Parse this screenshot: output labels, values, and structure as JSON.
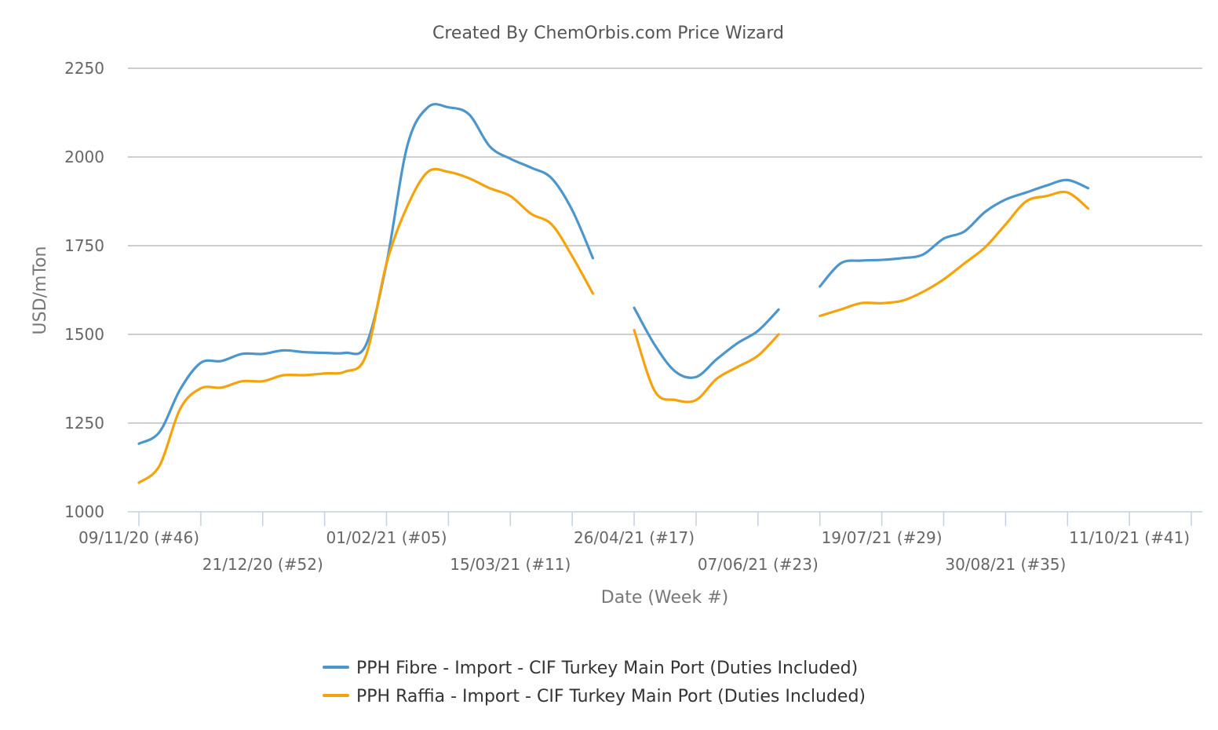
{
  "chart_data": {
    "type": "line",
    "title": "Created By ChemOrbis.com Price Wizard",
    "xlabel": "Date (Week #)",
    "ylabel": "USD/mTon",
    "ylim": [
      1000,
      2250
    ],
    "yticks": [
      1000,
      1250,
      1500,
      1750,
      2000,
      2250
    ],
    "grid": true,
    "legend_position": "bottom",
    "x": [
      "09/11/20 (#46)",
      "16/11/20 (#47)",
      "23/11/20 (#48)",
      "30/11/20 (#49)",
      "07/12/20 (#50)",
      "14/12/20 (#51)",
      "21/12/20 (#52)",
      "28/12/20 (#53)",
      "04/01/21 (#01)",
      "11/01/21 (#02)",
      "18/01/21 (#03)",
      "25/01/21 (#04)",
      "01/02/21 (#05)",
      "08/02/21 (#06)",
      "15/02/21 (#07)",
      "22/02/21 (#08)",
      "01/03/21 (#09)",
      "08/03/21 (#10)",
      "15/03/21 (#11)",
      "22/03/21 (#12)",
      "29/03/21 (#13)",
      "05/04/21 (#14)",
      "12/04/21 (#15)",
      "19/04/21 (#16)",
      "26/04/21 (#17)",
      "03/05/21 (#18)",
      "10/05/21 (#19)",
      "17/05/21 (#20)",
      "24/05/21 (#21)",
      "31/05/21 (#22)",
      "07/06/21 (#23)",
      "14/06/21 (#24)",
      "21/06/21 (#25)",
      "28/06/21 (#26)",
      "05/07/21 (#27)",
      "12/07/21 (#28)",
      "19/07/21 (#29)",
      "26/07/21 (#30)",
      "02/08/21 (#31)",
      "09/08/21 (#32)",
      "16/08/21 (#33)",
      "23/08/21 (#34)",
      "30/08/21 (#35)",
      "06/09/21 (#36)",
      "13/09/21 (#37)",
      "20/09/21 (#38)",
      "27/09/21 (#39)",
      "04/10/21 (#40)",
      "11/10/21 (#41)",
      "18/10/21 (#42)",
      "25/10/21 (#43)",
      "01/11/21 (#44)"
    ],
    "x_tick_labels": [
      {
        "label": "09/11/20 (#46)",
        "index": 0,
        "row": 0
      },
      {
        "label": "21/12/20 (#52)",
        "index": 6,
        "row": 1
      },
      {
        "label": "01/02/21 (#05)",
        "index": 12,
        "row": 0
      },
      {
        "label": "15/03/21 (#11)",
        "index": 18,
        "row": 1
      },
      {
        "label": "26/04/21 (#17)",
        "index": 24,
        "row": 0
      },
      {
        "label": "07/06/21 (#23)",
        "index": 30,
        "row": 1
      },
      {
        "label": "19/07/21 (#29)",
        "index": 36,
        "row": 0
      },
      {
        "label": "30/08/21 (#35)",
        "index": 42,
        "row": 1
      },
      {
        "label": "11/10/21 (#41)",
        "index": 48,
        "row": 0
      }
    ],
    "x_tick_mark_indices": [
      0,
      3,
      6,
      9,
      12,
      15,
      18,
      21,
      24,
      27,
      30,
      33,
      36,
      39,
      42,
      45,
      48,
      51
    ],
    "series": [
      {
        "name": "PPH Fibre - Import - CIF Turkey Main Port (Duties Included)",
        "color": "#4c96cc",
        "values": [
          1192,
          1225,
          1345,
          1420,
          1425,
          1445,
          1445,
          1455,
          1450,
          1448,
          1448,
          1470,
          1700,
          2030,
          2140,
          2140,
          2120,
          2030,
          1995,
          1970,
          1940,
          1850,
          1715,
          null,
          1575,
          1470,
          1395,
          1380,
          1430,
          1475,
          1510,
          1570,
          null,
          1635,
          1700,
          1708,
          1710,
          1715,
          1725,
          1770,
          1790,
          1845,
          1880,
          1900,
          1920,
          1935,
          1912,
          null,
          null,
          null,
          null,
          null
        ]
      },
      {
        "name": "PPH Raffia - Import - CIF Turkey Main Port (Duties Included)",
        "color": "#f5a30c",
        "values": [
          1082,
          1130,
          1290,
          1348,
          1350,
          1368,
          1368,
          1385,
          1385,
          1390,
          1395,
          1440,
          1700,
          1860,
          1958,
          1958,
          1940,
          1912,
          1890,
          1840,
          1810,
          1720,
          1615,
          null,
          1512,
          1340,
          1315,
          1315,
          1375,
          1408,
          1440,
          1500,
          null,
          1552,
          1570,
          1588,
          1588,
          1595,
          1620,
          1655,
          1700,
          1745,
          1810,
          1875,
          1890,
          1900,
          1855,
          null,
          null,
          null,
          null,
          null
        ]
      }
    ]
  }
}
